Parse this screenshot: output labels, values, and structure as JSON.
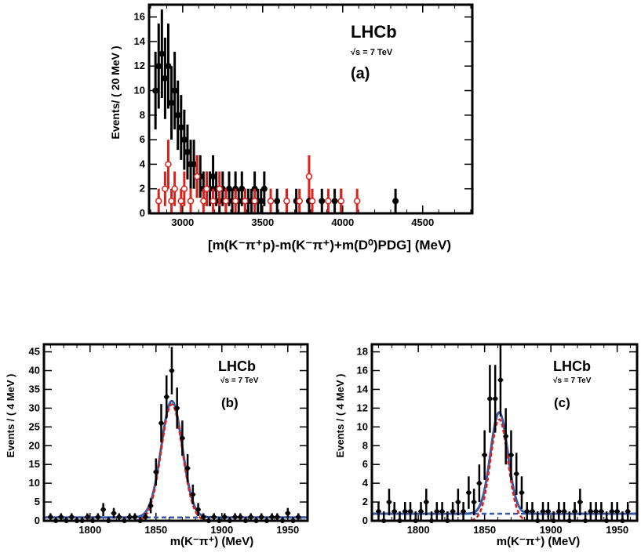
{
  "chart_data": [
    {
      "type": "scatter",
      "panel_label": "(a)",
      "experiment": "LHCb",
      "energy": "√s = 7 TeV",
      "xlabel": "[m(K⁻π⁺p)-m(K⁻π⁺)+m(D⁰)PDG] (MeV)",
      "ylabel": "Events/ ( 20 MeV )",
      "xlim": [
        2790,
        4810
      ],
      "ylim": [
        0,
        17
      ],
      "xticks": [
        3000,
        3500,
        4000,
        4500
      ],
      "yticks": [
        0,
        2,
        4,
        6,
        8,
        10,
        12,
        14,
        16
      ],
      "series": [
        {
          "color": "#000000",
          "marker": "filled-circle",
          "points": [
            [
              2830,
              10
            ],
            [
              2850,
              12
            ],
            [
              2870,
              13
            ],
            [
              2890,
              11
            ],
            [
              2910,
              12
            ],
            [
              2930,
              9
            ],
            [
              2950,
              10
            ],
            [
              2970,
              8
            ],
            [
              2990,
              7
            ],
            [
              3010,
              6
            ],
            [
              3030,
              5
            ],
            [
              3050,
              4
            ],
            [
              3070,
              4
            ],
            [
              3090,
              3
            ],
            [
              3110,
              3
            ],
            [
              3130,
              2
            ],
            [
              3150,
              2
            ],
            [
              3170,
              2
            ],
            [
              3190,
              3
            ],
            [
              3210,
              2
            ],
            [
              3230,
              1
            ],
            [
              3250,
              2
            ],
            [
              3270,
              1
            ],
            [
              3290,
              2
            ],
            [
              3310,
              1
            ],
            [
              3330,
              2
            ],
            [
              3350,
              1
            ],
            [
              3370,
              2
            ],
            [
              3390,
              1
            ],
            [
              3410,
              1
            ],
            [
              3430,
              1
            ],
            [
              3450,
              2
            ],
            [
              3470,
              1
            ],
            [
              3490,
              1
            ],
            [
              3510,
              2
            ],
            [
              3550,
              1
            ],
            [
              3590,
              1
            ],
            [
              3650,
              1
            ],
            [
              3710,
              1
            ],
            [
              3790,
              1
            ],
            [
              3870,
              1
            ],
            [
              3950,
              1
            ],
            [
              3990,
              1
            ],
            [
              4330,
              1
            ]
          ]
        },
        {
          "color": "#e0201a",
          "marker": "open-circle",
          "points": [
            [
              2850,
              1
            ],
            [
              2890,
              2
            ],
            [
              2910,
              4
            ],
            [
              2930,
              1
            ],
            [
              2950,
              2
            ],
            [
              2990,
              1
            ],
            [
              3010,
              2
            ],
            [
              3050,
              1
            ],
            [
              3090,
              3
            ],
            [
              3130,
              1
            ],
            [
              3150,
              2
            ],
            [
              3190,
              1
            ],
            [
              3230,
              2
            ],
            [
              3270,
              1
            ],
            [
              3330,
              1
            ],
            [
              3390,
              1
            ],
            [
              3450,
              1
            ],
            [
              3550,
              1
            ],
            [
              3650,
              1
            ],
            [
              3730,
              1
            ],
            [
              3790,
              3
            ],
            [
              3810,
              1
            ],
            [
              3910,
              1
            ],
            [
              3990,
              1
            ],
            [
              4090,
              1
            ]
          ]
        }
      ]
    },
    {
      "type": "scatter",
      "panel_label": "(b)",
      "experiment": "LHCb",
      "energy": "√s = 7 TeV",
      "xlabel": "m(K⁻π⁺) (MeV)",
      "ylabel": "Events / ( 4 MeV )",
      "xlim": [
        1765,
        1965
      ],
      "ylim": [
        0,
        47
      ],
      "xticks": [
        1800,
        1850,
        1900,
        1950
      ],
      "yticks": [
        0,
        5,
        10,
        15,
        20,
        25,
        30,
        35,
        40,
        45
      ],
      "points": [
        [
          1770,
          1
        ],
        [
          1774,
          0
        ],
        [
          1778,
          1
        ],
        [
          1782,
          0
        ],
        [
          1786,
          1
        ],
        [
          1790,
          0
        ],
        [
          1794,
          0
        ],
        [
          1798,
          1
        ],
        [
          1802,
          0
        ],
        [
          1806,
          1
        ],
        [
          1810,
          3
        ],
        [
          1814,
          0
        ],
        [
          1818,
          2
        ],
        [
          1822,
          1
        ],
        [
          1826,
          0
        ],
        [
          1830,
          1
        ],
        [
          1834,
          1
        ],
        [
          1838,
          0
        ],
        [
          1842,
          1
        ],
        [
          1846,
          4
        ],
        [
          1850,
          13
        ],
        [
          1854,
          26
        ],
        [
          1858,
          33
        ],
        [
          1862,
          40
        ],
        [
          1866,
          30
        ],
        [
          1870,
          22
        ],
        [
          1874,
          14
        ],
        [
          1878,
          7
        ],
        [
          1882,
          3
        ],
        [
          1886,
          1
        ],
        [
          1890,
          0
        ],
        [
          1894,
          1
        ],
        [
          1898,
          0
        ],
        [
          1902,
          1
        ],
        [
          1906,
          0
        ],
        [
          1910,
          1
        ],
        [
          1914,
          1
        ],
        [
          1918,
          0
        ],
        [
          1922,
          1
        ],
        [
          1926,
          0
        ],
        [
          1930,
          1
        ],
        [
          1934,
          0
        ],
        [
          1938,
          1
        ],
        [
          1942,
          1
        ],
        [
          1946,
          0
        ],
        [
          1950,
          2
        ],
        [
          1954,
          0
        ],
        [
          1958,
          1
        ]
      ],
      "fit": {
        "signal_mean": 1862,
        "signal_sigma": 8,
        "signal_peak": 31,
        "background_level": 0.9
      }
    },
    {
      "type": "scatter",
      "panel_label": "(c)",
      "experiment": "LHCb",
      "energy": "√s = 7 TeV",
      "xlabel": "m(K⁻π⁺) (MeV)",
      "ylabel": "Events / ( 4 MeV )",
      "xlim": [
        1765,
        1965
      ],
      "ylim": [
        0,
        18.8
      ],
      "xticks": [
        1800,
        1850,
        1900,
        1950
      ],
      "yticks": [
        0,
        2,
        4,
        6,
        8,
        10,
        12,
        14,
        16,
        18
      ],
      "points": [
        [
          1770,
          1
        ],
        [
          1774,
          0
        ],
        [
          1778,
          2
        ],
        [
          1782,
          1
        ],
        [
          1786,
          0
        ],
        [
          1790,
          1
        ],
        [
          1794,
          1
        ],
        [
          1798,
          0
        ],
        [
          1802,
          1
        ],
        [
          1806,
          2
        ],
        [
          1810,
          0
        ],
        [
          1814,
          1
        ],
        [
          1818,
          1
        ],
        [
          1822,
          0
        ],
        [
          1826,
          1
        ],
        [
          1830,
          2
        ],
        [
          1834,
          1
        ],
        [
          1838,
          3
        ],
        [
          1842,
          2
        ],
        [
          1846,
          4
        ],
        [
          1850,
          7
        ],
        [
          1854,
          13
        ],
        [
          1858,
          13
        ],
        [
          1862,
          15
        ],
        [
          1866,
          9
        ],
        [
          1870,
          7
        ],
        [
          1874,
          5
        ],
        [
          1878,
          3
        ],
        [
          1882,
          1
        ],
        [
          1886,
          1
        ],
        [
          1890,
          0
        ],
        [
          1894,
          1
        ],
        [
          1898,
          1
        ],
        [
          1902,
          0
        ],
        [
          1906,
          1
        ],
        [
          1910,
          1
        ],
        [
          1914,
          0
        ],
        [
          1918,
          1
        ],
        [
          1922,
          2
        ],
        [
          1926,
          0
        ],
        [
          1930,
          1
        ],
        [
          1934,
          1
        ],
        [
          1938,
          1
        ],
        [
          1942,
          0
        ],
        [
          1946,
          1
        ],
        [
          1950,
          1
        ],
        [
          1954,
          0
        ],
        [
          1958,
          1
        ]
      ],
      "fit": {
        "signal_mean": 1861,
        "signal_sigma": 6.5,
        "signal_peak": 10.8,
        "background_level": 0.75
      }
    }
  ],
  "colors": {
    "fit_total": "#3a5aa8",
    "fit_signal": "#e0201a",
    "fit_background": "#3a5aa8",
    "data": "#000000"
  }
}
